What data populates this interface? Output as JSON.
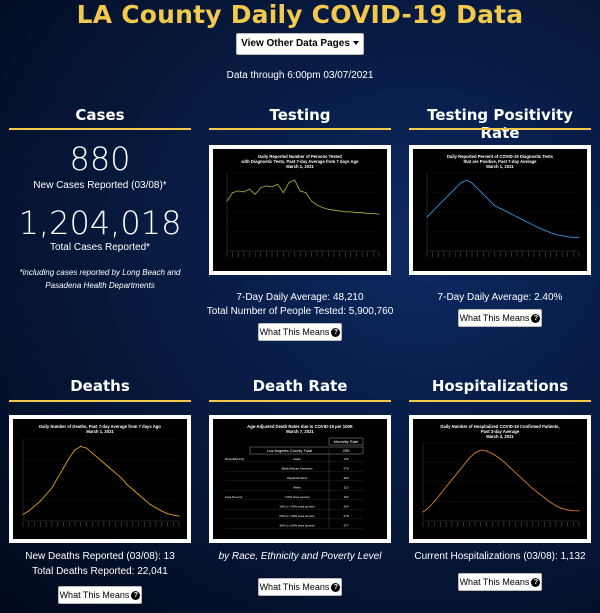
{
  "header": {
    "title": "LA County Daily COVID-19 Data",
    "menu_button": "View Other Data Pages",
    "as_of": "Data through 6:00pm 03/07/2021"
  },
  "cases": {
    "title": "Cases",
    "new_cases": "880",
    "new_cases_label": "New Cases Reported (03/08)*",
    "total_cases": "1,204,018",
    "total_cases_label": "Total Cases Reported*",
    "footnote": "*including cases reported by Long Beach and Pasadena Health Departments"
  },
  "testing": {
    "title": "Testing",
    "chart_title_1": "Daily Reported Number of Persons Tested",
    "chart_title_2": "with Diagnostic Tests, Past 7-day Average from 7 days Ago",
    "chart_title_3": "March 1, 2021",
    "avg": "7-Day Daily Average: 48,210",
    "total": "Total Number of People Tested: 5,900,760",
    "what_button": "What This Means"
  },
  "positivity": {
    "title": "Testing Positivity Rate",
    "chart_title_1": "Daily Reported Percent of COVID-19 Diagnostic Tests",
    "chart_title_2": "that are Positive, Past 7-day Average",
    "chart_title_3": "March 1, 2021",
    "avg": "7-Day Daily Average: 2.40%",
    "what_button": "What This Means"
  },
  "deaths": {
    "title": "Deaths",
    "chart_title_1": "Daily Number of Deaths, Past 7-day Average from 7 days Ago",
    "chart_title_2": "March 1, 2021",
    "new_deaths": "New Deaths Reported (03/08): 13",
    "total_deaths": "Total Deaths Reported: 22,041",
    "what_button": "What This Means"
  },
  "death_rate": {
    "title": "Death Rate",
    "chart_title_1": "Age-Adjusted Death Rates due to COVID-19 per 100K",
    "chart_title_2": "March 7, 2021",
    "table_header": "Mortality Rate",
    "county_label": "Los Angeles County Total",
    "county_value": "200",
    "rows": [
      {
        "group": "Race/Ethnicity",
        "label": "Asian",
        "value": "136"
      },
      {
        "group": "",
        "label": "Black/African American",
        "value": "278"
      },
      {
        "group": "",
        "label": "Hispanic/Latino",
        "value": "309"
      },
      {
        "group": "",
        "label": "White",
        "value": "115"
      },
      {
        "group": "Area Poverty",
        "label": "<10% area poverty",
        "value": "103"
      },
      {
        "group": "",
        "label": "10% to <20% area poverty",
        "value": "204"
      },
      {
        "group": "",
        "label": "20% to <30% area poverty",
        "value": "278"
      },
      {
        "group": "",
        "label": "30% to 100% area poverty",
        "value": "377"
      }
    ],
    "caption": "by Race, Ethnicity and Poverty Level",
    "what_button": "What This Means"
  },
  "hospitalizations": {
    "title": "Hospitalizations",
    "chart_title_1": "Daily Number of Hospitalized COVID-19 Confirmed Patients,",
    "chart_title_2": "Past 3-day Average",
    "chart_title_3": "March 4, 2021",
    "current": "Current Hospitalizations (03/08): 1,132",
    "what_button": "What This Means"
  },
  "colors": {
    "accent": "#f2c94c",
    "testing_line": "#9aa83a",
    "positivity_line": "#3b8fd8",
    "deaths_line": "#e2a21a",
    "hosp_line": "#e07a2a"
  },
  "icons": {
    "question": "question-circle-icon",
    "caret": "caret-down-icon"
  },
  "chart_data": [
    {
      "type": "line",
      "title": "Daily Reported Number of Persons Tested with Diagnostic Tests, Past 7-day Average from 7 days Ago",
      "series": [
        {
          "values": [
            60,
            70,
            72,
            71,
            74,
            68,
            76,
            78,
            77,
            80,
            70,
            82,
            85,
            72,
            70,
            60,
            55,
            52,
            50,
            49,
            48,
            47,
            47,
            46,
            46,
            45,
            45,
            44
          ]
        }
      ]
    },
    {
      "type": "line",
      "title": "Daily Reported Percent of COVID-19 Diagnostic Tests that are Positive, Past 7-day Average",
      "series": [
        {
          "values": [
            6,
            7,
            8,
            9,
            10,
            11,
            12,
            12.5,
            12,
            11,
            10,
            9,
            8,
            7.5,
            7,
            6.5,
            6,
            5.5,
            5,
            4.5,
            4,
            3.6,
            3.2,
            2.9,
            2.7,
            2.5,
            2.4,
            2.4
          ]
        }
      ]
    },
    {
      "type": "line",
      "title": "Daily Number of Deaths, Past 7-day Average from 7 days Ago",
      "series": [
        {
          "values": [
            20,
            30,
            45,
            60,
            80,
            100,
            130,
            160,
            190,
            215,
            225,
            220,
            205,
            190,
            175,
            160,
            145,
            130,
            110,
            95,
            80,
            65,
            50,
            40,
            30,
            22,
            18,
            15
          ]
        }
      ]
    },
    {
      "type": "line",
      "title": "Daily Number of Hospitalized COVID-19 Confirmed Patients, Past 3-day Average",
      "series": [
        {
          "values": [
            1000,
            1500,
            2200,
            3000,
            3800,
            4600,
            5400,
            6200,
            7000,
            7600,
            7900,
            7800,
            7500,
            7100,
            6600,
            6000,
            5400,
            4800,
            4200,
            3600,
            3100,
            2600,
            2100,
            1700,
            1400,
            1250,
            1150,
            1132
          ]
        }
      ]
    }
  ]
}
